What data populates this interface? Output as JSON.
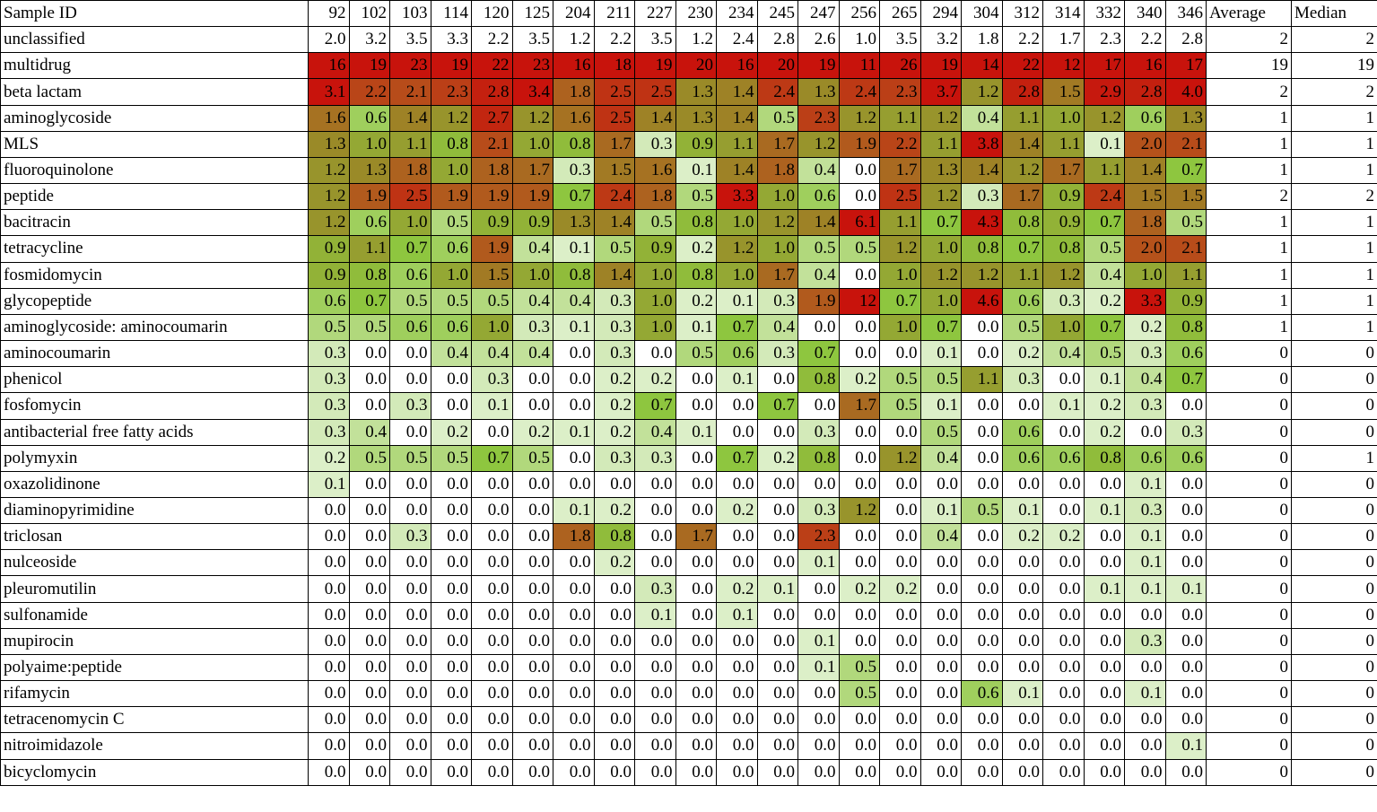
{
  "chart_data": {
    "type": "heatmap",
    "corner_label": "Sample ID",
    "columns": [
      "92",
      "102",
      "103",
      "114",
      "120",
      "125",
      "204",
      "211",
      "227",
      "230",
      "234",
      "245",
      "247",
      "256",
      "265",
      "294",
      "304",
      "312",
      "314",
      "332",
      "340",
      "346"
    ],
    "stat_headers": [
      "Average",
      "Median"
    ],
    "colors": {
      "zero": "#ffffff",
      "low": "#dcefc8",
      "mid_green": "#8ec63f",
      "olive": "#9a8a28",
      "brown": "#b5521b",
      "high": "#c8130c"
    },
    "rows": [
      {
        "label": "unclassified",
        "values": [
          "2.0",
          "3.2",
          "3.5",
          "3.3",
          "2.2",
          "3.5",
          "1.2",
          "2.2",
          "3.5",
          "1.2",
          "2.4",
          "2.8",
          "2.6",
          "1.0",
          "3.5",
          "3.2",
          "1.8",
          "2.2",
          "1.7",
          "2.3",
          "2.2",
          "2.8"
        ],
        "average": "2",
        "median": "2",
        "nocolor": true
      },
      {
        "label": "multidrug",
        "values": [
          "16",
          "19",
          "23",
          "19",
          "22",
          "23",
          "16",
          "18",
          "19",
          "20",
          "16",
          "20",
          "19",
          "11",
          "26",
          "19",
          "14",
          "22",
          "12",
          "17",
          "16",
          "17"
        ],
        "average": "19",
        "median": "19",
        "solid": true
      },
      {
        "label": "beta lactam",
        "values": [
          "3.1",
          "2.2",
          "2.1",
          "2.3",
          "2.8",
          "3.4",
          "1.8",
          "2.5",
          "2.5",
          "1.3",
          "1.4",
          "2.4",
          "1.3",
          "2.4",
          "2.3",
          "3.7",
          "1.2",
          "2.8",
          "1.5",
          "2.9",
          "2.8",
          "4.0"
        ],
        "average": "2",
        "median": "2"
      },
      {
        "label": "aminoglycoside",
        "values": [
          "1.6",
          "0.6",
          "1.4",
          "1.2",
          "2.7",
          "1.2",
          "1.6",
          "2.5",
          "1.4",
          "1.3",
          "1.4",
          "0.5",
          "2.3",
          "1.2",
          "1.1",
          "1.2",
          "0.4",
          "1.1",
          "1.0",
          "1.2",
          "0.6",
          "1.3"
        ],
        "average": "1",
        "median": "1"
      },
      {
        "label": "MLS",
        "values": [
          "1.3",
          "1.0",
          "1.1",
          "0.8",
          "2.1",
          "1.0",
          "0.8",
          "1.7",
          "0.3",
          "0.9",
          "1.1",
          "1.7",
          "1.2",
          "1.9",
          "2.2",
          "1.1",
          "3.8",
          "1.4",
          "1.1",
          "0.1",
          "2.0",
          "2.1"
        ],
        "average": "1",
        "median": "1"
      },
      {
        "label": "fluoroquinolone",
        "values": [
          "1.2",
          "1.3",
          "1.8",
          "1.0",
          "1.8",
          "1.7",
          "0.3",
          "1.5",
          "1.6",
          "0.1",
          "1.4",
          "1.8",
          "0.4",
          "0.0",
          "1.7",
          "1.3",
          "1.4",
          "1.2",
          "1.7",
          "1.1",
          "1.4",
          "0.7"
        ],
        "average": "1",
        "median": "1"
      },
      {
        "label": "peptide",
        "values": [
          "1.2",
          "1.9",
          "2.5",
          "1.9",
          "1.9",
          "1.9",
          "0.7",
          "2.4",
          "1.8",
          "0.5",
          "3.3",
          "1.0",
          "0.6",
          "0.0",
          "2.5",
          "1.2",
          "0.3",
          "1.7",
          "0.9",
          "2.4",
          "1.5",
          "1.5"
        ],
        "average": "2",
        "median": "2"
      },
      {
        "label": "bacitracin",
        "values": [
          "1.2",
          "0.6",
          "1.0",
          "0.5",
          "0.9",
          "0.9",
          "1.3",
          "1.4",
          "0.5",
          "0.8",
          "1.0",
          "1.2",
          "1.4",
          "6.1",
          "1.1",
          "0.7",
          "4.3",
          "0.8",
          "0.9",
          "0.7",
          "1.8",
          "0.5"
        ],
        "average": "1",
        "median": "1"
      },
      {
        "label": "tetracycline",
        "values": [
          "0.9",
          "1.1",
          "0.7",
          "0.6",
          "1.9",
          "0.4",
          "0.1",
          "0.5",
          "0.9",
          "0.2",
          "1.2",
          "1.0",
          "0.5",
          "0.5",
          "1.2",
          "1.0",
          "0.8",
          "0.7",
          "0.8",
          "0.5",
          "2.0",
          "2.1"
        ],
        "average": "1",
        "median": "1"
      },
      {
        "label": "fosmidomycin",
        "values": [
          "0.9",
          "0.8",
          "0.6",
          "1.0",
          "1.5",
          "1.0",
          "0.8",
          "1.4",
          "1.0",
          "0.8",
          "1.0",
          "1.7",
          "0.4",
          "0.0",
          "1.0",
          "1.2",
          "1.2",
          "1.1",
          "1.2",
          "0.4",
          "1.0",
          "1.1"
        ],
        "average": "1",
        "median": "1"
      },
      {
        "label": "glycopeptide",
        "values": [
          "0.6",
          "0.7",
          "0.5",
          "0.5",
          "0.5",
          "0.4",
          "0.4",
          "0.3",
          "1.0",
          "0.2",
          "0.1",
          "0.3",
          "1.9",
          "12",
          "0.7",
          "1.0",
          "4.6",
          "0.6",
          "0.3",
          "0.2",
          "3.3",
          "0.9"
        ],
        "average": "1",
        "median": "1"
      },
      {
        "label": "aminoglycoside: aminocoumarin",
        "values": [
          "0.5",
          "0.5",
          "0.6",
          "0.6",
          "1.0",
          "0.3",
          "0.1",
          "0.3",
          "1.0",
          "0.1",
          "0.7",
          "0.4",
          "0.0",
          "0.0",
          "1.0",
          "0.7",
          "0.0",
          "0.5",
          "1.0",
          "0.7",
          "0.2",
          "0.8"
        ],
        "average": "1",
        "median": "1"
      },
      {
        "label": "aminocoumarin",
        "values": [
          "0.3",
          "0.0",
          "0.0",
          "0.4",
          "0.4",
          "0.4",
          "0.0",
          "0.3",
          "0.0",
          "0.5",
          "0.6",
          "0.3",
          "0.7",
          "0.0",
          "0.0",
          "0.1",
          "0.0",
          "0.2",
          "0.4",
          "0.5",
          "0.3",
          "0.6"
        ],
        "average": "0",
        "median": "0"
      },
      {
        "label": "phenicol",
        "values": [
          "0.3",
          "0.0",
          "0.0",
          "0.0",
          "0.3",
          "0.0",
          "0.0",
          "0.2",
          "0.2",
          "0.0",
          "0.1",
          "0.0",
          "0.8",
          "0.2",
          "0.5",
          "0.5",
          "1.1",
          "0.3",
          "0.0",
          "0.1",
          "0.4",
          "0.7"
        ],
        "average": "0",
        "median": "0"
      },
      {
        "label": "fosfomycin",
        "values": [
          "0.3",
          "0.0",
          "0.3",
          "0.0",
          "0.1",
          "0.0",
          "0.0",
          "0.2",
          "0.7",
          "0.0",
          "0.0",
          "0.7",
          "0.0",
          "1.7",
          "0.5",
          "0.1",
          "0.0",
          "0.0",
          "0.1",
          "0.2",
          "0.3",
          "0.0"
        ],
        "average": "0",
        "median": "0"
      },
      {
        "label": "antibacterial free fatty acids",
        "values": [
          "0.3",
          "0.4",
          "0.0",
          "0.2",
          "0.0",
          "0.2",
          "0.1",
          "0.2",
          "0.4",
          "0.1",
          "0.0",
          "0.0",
          "0.3",
          "0.0",
          "0.0",
          "0.5",
          "0.0",
          "0.6",
          "0.0",
          "0.2",
          "0.0",
          "0.3"
        ],
        "average": "0",
        "median": "0"
      },
      {
        "label": "polymyxin",
        "values": [
          "0.2",
          "0.5",
          "0.5",
          "0.5",
          "0.7",
          "0.5",
          "0.0",
          "0.3",
          "0.3",
          "0.0",
          "0.7",
          "0.2",
          "0.8",
          "0.0",
          "1.2",
          "0.4",
          "0.0",
          "0.6",
          "0.6",
          "0.8",
          "0.6",
          "0.6"
        ],
        "average": "0",
        "median": "1"
      },
      {
        "label": "oxazolidinone",
        "values": [
          "0.1",
          "0.0",
          "0.0",
          "0.0",
          "0.0",
          "0.0",
          "0.0",
          "0.0",
          "0.0",
          "0.0",
          "0.0",
          "0.0",
          "0.0",
          "0.0",
          "0.0",
          "0.0",
          "0.0",
          "0.0",
          "0.0",
          "0.0",
          "0.1",
          "0.0"
        ],
        "average": "0",
        "median": "0"
      },
      {
        "label": "diaminopyrimidine",
        "values": [
          "0.0",
          "0.0",
          "0.0",
          "0.0",
          "0.0",
          "0.0",
          "0.1",
          "0.2",
          "0.0",
          "0.0",
          "0.2",
          "0.0",
          "0.3",
          "1.2",
          "0.0",
          "0.1",
          "0.5",
          "0.1",
          "0.0",
          "0.1",
          "0.3",
          "0.0"
        ],
        "average": "0",
        "median": "0"
      },
      {
        "label": "triclosan",
        "values": [
          "0.0",
          "0.0",
          "0.3",
          "0.0",
          "0.0",
          "0.0",
          "1.8",
          "0.8",
          "0.0",
          "1.7",
          "0.0",
          "0.0",
          "2.3",
          "0.0",
          "0.0",
          "0.4",
          "0.0",
          "0.2",
          "0.2",
          "0.0",
          "0.1",
          "0.0"
        ],
        "average": "0",
        "median": "0"
      },
      {
        "label": "nulceoside",
        "values": [
          "0.0",
          "0.0",
          "0.0",
          "0.0",
          "0.0",
          "0.0",
          "0.0",
          "0.2",
          "0.0",
          "0.0",
          "0.0",
          "0.0",
          "0.1",
          "0.0",
          "0.0",
          "0.0",
          "0.0",
          "0.0",
          "0.0",
          "0.0",
          "0.1",
          "0.0"
        ],
        "average": "0",
        "median": "0"
      },
      {
        "label": "pleuromutilin",
        "values": [
          "0.0",
          "0.0",
          "0.0",
          "0.0",
          "0.0",
          "0.0",
          "0.0",
          "0.0",
          "0.3",
          "0.0",
          "0.2",
          "0.1",
          "0.0",
          "0.2",
          "0.2",
          "0.0",
          "0.0",
          "0.0",
          "0.0",
          "0.1",
          "0.1",
          "0.1"
        ],
        "average": "0",
        "median": "0"
      },
      {
        "label": "sulfonamide",
        "values": [
          "0.0",
          "0.0",
          "0.0",
          "0.0",
          "0.0",
          "0.0",
          "0.0",
          "0.0",
          "0.1",
          "0.0",
          "0.1",
          "0.0",
          "0.0",
          "0.0",
          "0.0",
          "0.0",
          "0.0",
          "0.0",
          "0.0",
          "0.0",
          "0.0",
          "0.0"
        ],
        "average": "0",
        "median": "0"
      },
      {
        "label": "mupirocin",
        "values": [
          "0.0",
          "0.0",
          "0.0",
          "0.0",
          "0.0",
          "0.0",
          "0.0",
          "0.0",
          "0.0",
          "0.0",
          "0.0",
          "0.0",
          "0.1",
          "0.0",
          "0.0",
          "0.0",
          "0.0",
          "0.0",
          "0.0",
          "0.0",
          "0.3",
          "0.0"
        ],
        "average": "0",
        "median": "0"
      },
      {
        "label": "polyaime:peptide",
        "values": [
          "0.0",
          "0.0",
          "0.0",
          "0.0",
          "0.0",
          "0.0",
          "0.0",
          "0.0",
          "0.0",
          "0.0",
          "0.0",
          "0.0",
          "0.1",
          "0.5",
          "0.0",
          "0.0",
          "0.0",
          "0.0",
          "0.0",
          "0.0",
          "0.0",
          "0.0"
        ],
        "average": "0",
        "median": "0"
      },
      {
        "label": "rifamycin",
        "values": [
          "0.0",
          "0.0",
          "0.0",
          "0.0",
          "0.0",
          "0.0",
          "0.0",
          "0.0",
          "0.0",
          "0.0",
          "0.0",
          "0.0",
          "0.0",
          "0.5",
          "0.0",
          "0.0",
          "0.6",
          "0.1",
          "0.0",
          "0.0",
          "0.1",
          "0.0"
        ],
        "average": "0",
        "median": "0"
      },
      {
        "label": "tetracenomycin C",
        "values": [
          "0.0",
          "0.0",
          "0.0",
          "0.0",
          "0.0",
          "0.0",
          "0.0",
          "0.0",
          "0.0",
          "0.0",
          "0.0",
          "0.0",
          "0.0",
          "0.0",
          "0.0",
          "0.0",
          "0.0",
          "0.0",
          "0.0",
          "0.0",
          "0.0",
          "0.0"
        ],
        "average": "0",
        "median": "0"
      },
      {
        "label": "nitroimidazole",
        "values": [
          "0.0",
          "0.0",
          "0.0",
          "0.0",
          "0.0",
          "0.0",
          "0.0",
          "0.0",
          "0.0",
          "0.0",
          "0.0",
          "0.0",
          "0.0",
          "0.0",
          "0.0",
          "0.0",
          "0.0",
          "0.0",
          "0.0",
          "0.0",
          "0.0",
          "0.1"
        ],
        "average": "0",
        "median": "0"
      },
      {
        "label": "bicyclomycin",
        "values": [
          "0.0",
          "0.0",
          "0.0",
          "0.0",
          "0.0",
          "0.0",
          "0.0",
          "0.0",
          "0.0",
          "0.0",
          "0.0",
          "0.0",
          "0.0",
          "0.0",
          "0.0",
          "0.0",
          "0.0",
          "0.0",
          "0.0",
          "0.0",
          "0.0",
          "0.0"
        ],
        "average": "0",
        "median": "0"
      }
    ]
  }
}
